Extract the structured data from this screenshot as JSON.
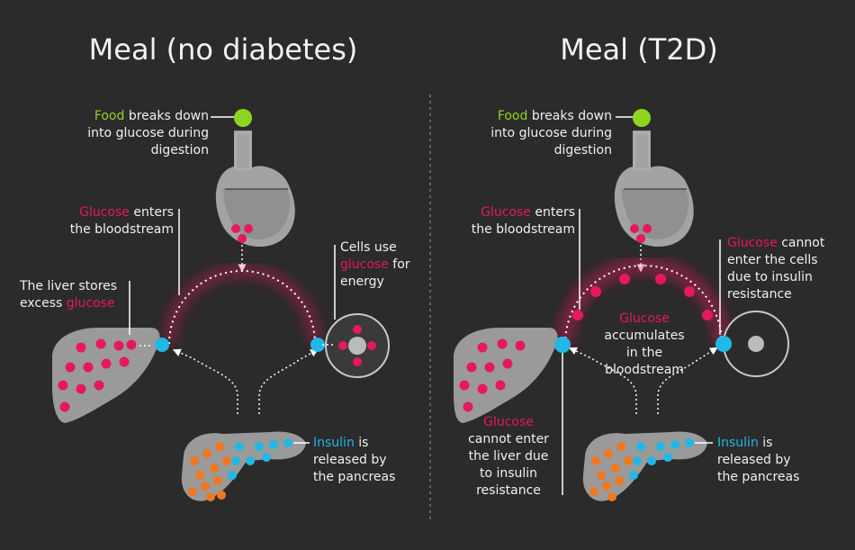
{
  "left": {
    "title": "Meal (no diabetes)",
    "food": {
      "highlight": "Food",
      "rest1": " breaks down",
      "line2": "into glucose during",
      "line3": "digestion"
    },
    "glucose_enters": {
      "highlight": "Glucose",
      "rest1": " enters",
      "line2": "the bloodstream"
    },
    "liver": {
      "line1": "The liver stores",
      "prefix2": "excess ",
      "highlight": "glucose"
    },
    "cells": {
      "line1": "Cells use",
      "highlight": "glucose",
      "rest2": " for",
      "line3": "energy"
    },
    "insulin": {
      "highlight": "Insulin",
      "rest1": " is",
      "line2": "released by",
      "line3": "the pancreas"
    }
  },
  "right": {
    "title": "Meal (T2D)",
    "food": {
      "highlight": "Food",
      "rest1": " breaks down",
      "line2": "into glucose during",
      "line3": "digestion"
    },
    "glucose_enters": {
      "highlight": "Glucose",
      "rest1": " enters",
      "line2": "the bloodstream"
    },
    "accumulates": {
      "highlight": "Glucose",
      "line2": "accumulates",
      "line3": "in the",
      "line4": "bloodstream"
    },
    "cells": {
      "highlight": "Glucose",
      "rest1": " cannot",
      "line2": "enter the cells",
      "line3": "due to insulin",
      "line4": "resistance"
    },
    "liver": {
      "highlight": "Glucose",
      "line2": "cannot enter",
      "line3": "the liver due",
      "line4": "to insulin",
      "line5": "resistance"
    },
    "insulin": {
      "highlight": "Insulin",
      "rest1": " is",
      "line2": "released by",
      "line3": "the pancreas"
    }
  },
  "colors": {
    "background": "#2b2b2b",
    "food_green": "#8fd420",
    "glucose_pink": "#e6185e",
    "insulin_cyan": "#22b8e6",
    "pancreas_orange": "#f07820",
    "organ_gray": "#9a9a9a"
  }
}
